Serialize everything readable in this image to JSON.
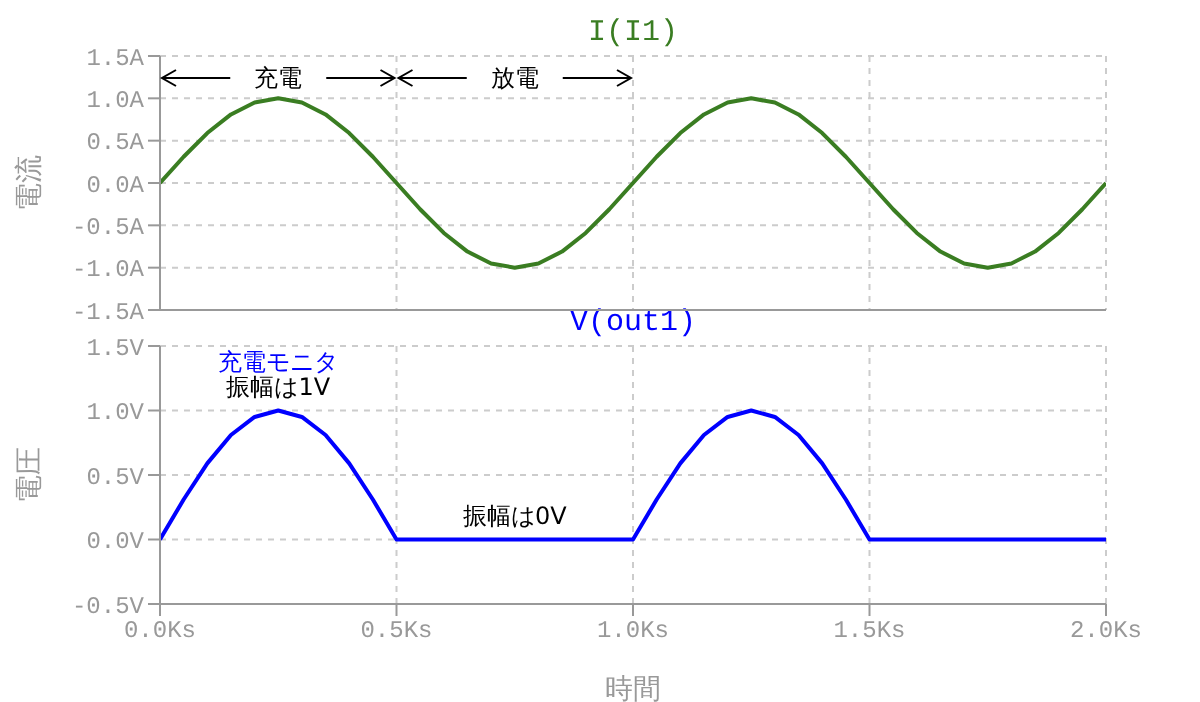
{
  "chart_data": [
    {
      "type": "line",
      "title": "I(I1)",
      "ylabel": "電流",
      "x": [
        0,
        0.05,
        0.1,
        0.15,
        0.2,
        0.25,
        0.3,
        0.35,
        0.4,
        0.45,
        0.5,
        0.55,
        0.6,
        0.65,
        0.7,
        0.75,
        0.8,
        0.85,
        0.9,
        0.95,
        1,
        1.05,
        1.1,
        1.15,
        1.2,
        1.25,
        1.3,
        1.35,
        1.4,
        1.45,
        1.5,
        1.55,
        1.6,
        1.65,
        1.7,
        1.75,
        1.8,
        1.85,
        1.9,
        1.95,
        2
      ],
      "series": [
        {
          "color": "#3a7d22",
          "values": [
            0,
            0.31,
            0.59,
            0.81,
            0.95,
            1,
            0.95,
            0.81,
            0.59,
            0.31,
            0,
            -0.31,
            -0.59,
            -0.81,
            -0.95,
            -1,
            -0.95,
            -0.81,
            -0.59,
            -0.31,
            0,
            0.31,
            0.59,
            0.81,
            0.95,
            1,
            0.95,
            0.81,
            0.59,
            0.31,
            0,
            -0.31,
            -0.59,
            -0.81,
            -0.95,
            -1,
            -0.95,
            -0.81,
            -0.59,
            -0.31,
            0
          ]
        }
      ],
      "xlim": [
        0,
        2
      ],
      "xticks": [
        {
          "value": 0,
          "label": null
        },
        {
          "value": 0.5,
          "label": null
        },
        {
          "value": 1,
          "label": null
        },
        {
          "value": 1.5,
          "label": null
        },
        {
          "value": 2,
          "label": null
        }
      ],
      "ylim": [
        -1.5,
        1.5
      ],
      "yticks": [
        {
          "value": -1.5,
          "label": "-1.5A"
        },
        {
          "value": -1,
          "label": "-1.0A"
        },
        {
          "value": -0.5,
          "label": "-0.5A"
        },
        {
          "value": 0,
          "label": "0.0A"
        },
        {
          "value": 0.5,
          "label": "0.5A"
        },
        {
          "value": 1,
          "label": "1.0A"
        },
        {
          "value": 1.5,
          "label": "1.5A"
        }
      ],
      "tick_labels": "y",
      "grid": true,
      "annotations": [
        "充電",
        "放電"
      ]
    },
    {
      "type": "line",
      "title": "V(out1)",
      "xlabel": "時間",
      "ylabel": "電圧",
      "x": [
        0,
        0.05,
        0.1,
        0.15,
        0.2,
        0.25,
        0.3,
        0.35,
        0.4,
        0.45,
        0.5,
        0.55,
        0.6,
        0.65,
        0.7,
        0.75,
        0.8,
        0.85,
        0.9,
        0.95,
        1,
        1.05,
        1.1,
        1.15,
        1.2,
        1.25,
        1.3,
        1.35,
        1.4,
        1.45,
        1.5,
        1.55,
        1.6,
        1.65,
        1.7,
        1.75,
        1.8,
        1.85,
        1.9,
        1.95,
        2
      ],
      "series": [
        {
          "color": "#0000ff",
          "values": [
            0,
            0.31,
            0.59,
            0.81,
            0.95,
            1,
            0.95,
            0.81,
            0.59,
            0.31,
            0,
            0,
            0,
            0,
            0,
            0,
            0,
            0,
            0,
            0,
            0,
            0.31,
            0.59,
            0.81,
            0.95,
            1,
            0.95,
            0.81,
            0.59,
            0.31,
            0,
            0,
            0,
            0,
            0,
            0,
            0,
            0,
            0,
            0,
            0
          ]
        }
      ],
      "xlim": [
        0,
        2
      ],
      "xticks": [
        {
          "value": 0,
          "label": "0.0Ks"
        },
        {
          "value": 0.5,
          "label": "0.5Ks"
        },
        {
          "value": 1,
          "label": "1.0Ks"
        },
        {
          "value": 1.5,
          "label": "1.5Ks"
        },
        {
          "value": 2,
          "label": "2.0Ks"
        }
      ],
      "ylim": [
        -0.5,
        1.5
      ],
      "yticks": [
        {
          "value": -0.5,
          "label": "-0.5V"
        },
        {
          "value": 0,
          "label": "0.0V"
        },
        {
          "value": 0.5,
          "label": "0.5V"
        },
        {
          "value": 1,
          "label": "1.0V"
        },
        {
          "value": 1.5,
          "label": "1.5V"
        }
      ],
      "grid": true,
      "annotations": [
        "充電モニタ",
        {
          "text": "振幅は1V",
          "x": 0.25,
          "y": 1
        },
        {
          "text": "振幅は0V",
          "x": 0.75,
          "y": 0
        }
      ]
    }
  ]
}
